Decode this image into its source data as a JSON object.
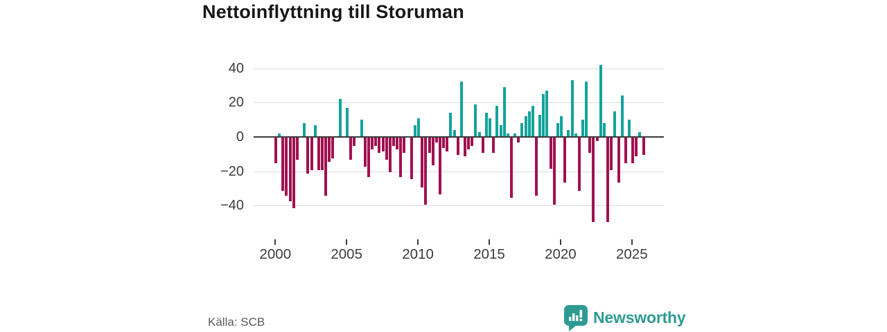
{
  "chart_data": {
    "type": "bar",
    "title": "Nettoinflyttning till Storuman",
    "frequency": "quarterly",
    "x_start": "2000 Q1",
    "x_end": "2025 Q4",
    "values": [
      -15,
      2,
      -31,
      -34,
      -37,
      -41,
      -13,
      0,
      8,
      -21,
      -19,
      7,
      -19,
      -19,
      -34,
      -14,
      -12,
      0,
      22,
      0,
      17,
      -13,
      -5,
      0,
      10,
      -17,
      -23,
      -7,
      -5,
      -9,
      -8,
      -13,
      -20,
      -5,
      -7,
      -23,
      -9,
      0,
      -24,
      7,
      11,
      -29,
      -39,
      -9,
      -16,
      -3,
      -33,
      -6,
      -8,
      14,
      4,
      -10,
      32,
      -11,
      -7,
      -5,
      19,
      3,
      -9,
      14,
      11,
      -9,
      18,
      7,
      29,
      2,
      -35,
      2,
      -3,
      8,
      12,
      15,
      18,
      -34,
      13,
      25,
      27,
      -18,
      -39,
      8,
      12,
      -26,
      4,
      33,
      2,
      -31,
      10,
      32,
      -9,
      -49,
      -2,
      42,
      8,
      -49,
      -19,
      15,
      -26,
      24,
      -15,
      10,
      -15,
      -11,
      3,
      -10
    ],
    "x_tick_labels": [
      "2000",
      "2005",
      "2010",
      "2015",
      "2020",
      "2025"
    ],
    "y_ticks": [
      40,
      20,
      0,
      -20,
      -40
    ],
    "y_tick_labels": [
      "40",
      "20",
      "0",
      "−20",
      "−40"
    ],
    "ylim": [
      -52,
      46
    ],
    "grid": "horizontal",
    "legend": "none",
    "colors": {
      "positive": "#14a39a",
      "negative": "#a01150"
    }
  },
  "footer": {
    "source": "Källa: SCB",
    "brand": "Newsworthy",
    "brand_color": "#2e9b93"
  }
}
